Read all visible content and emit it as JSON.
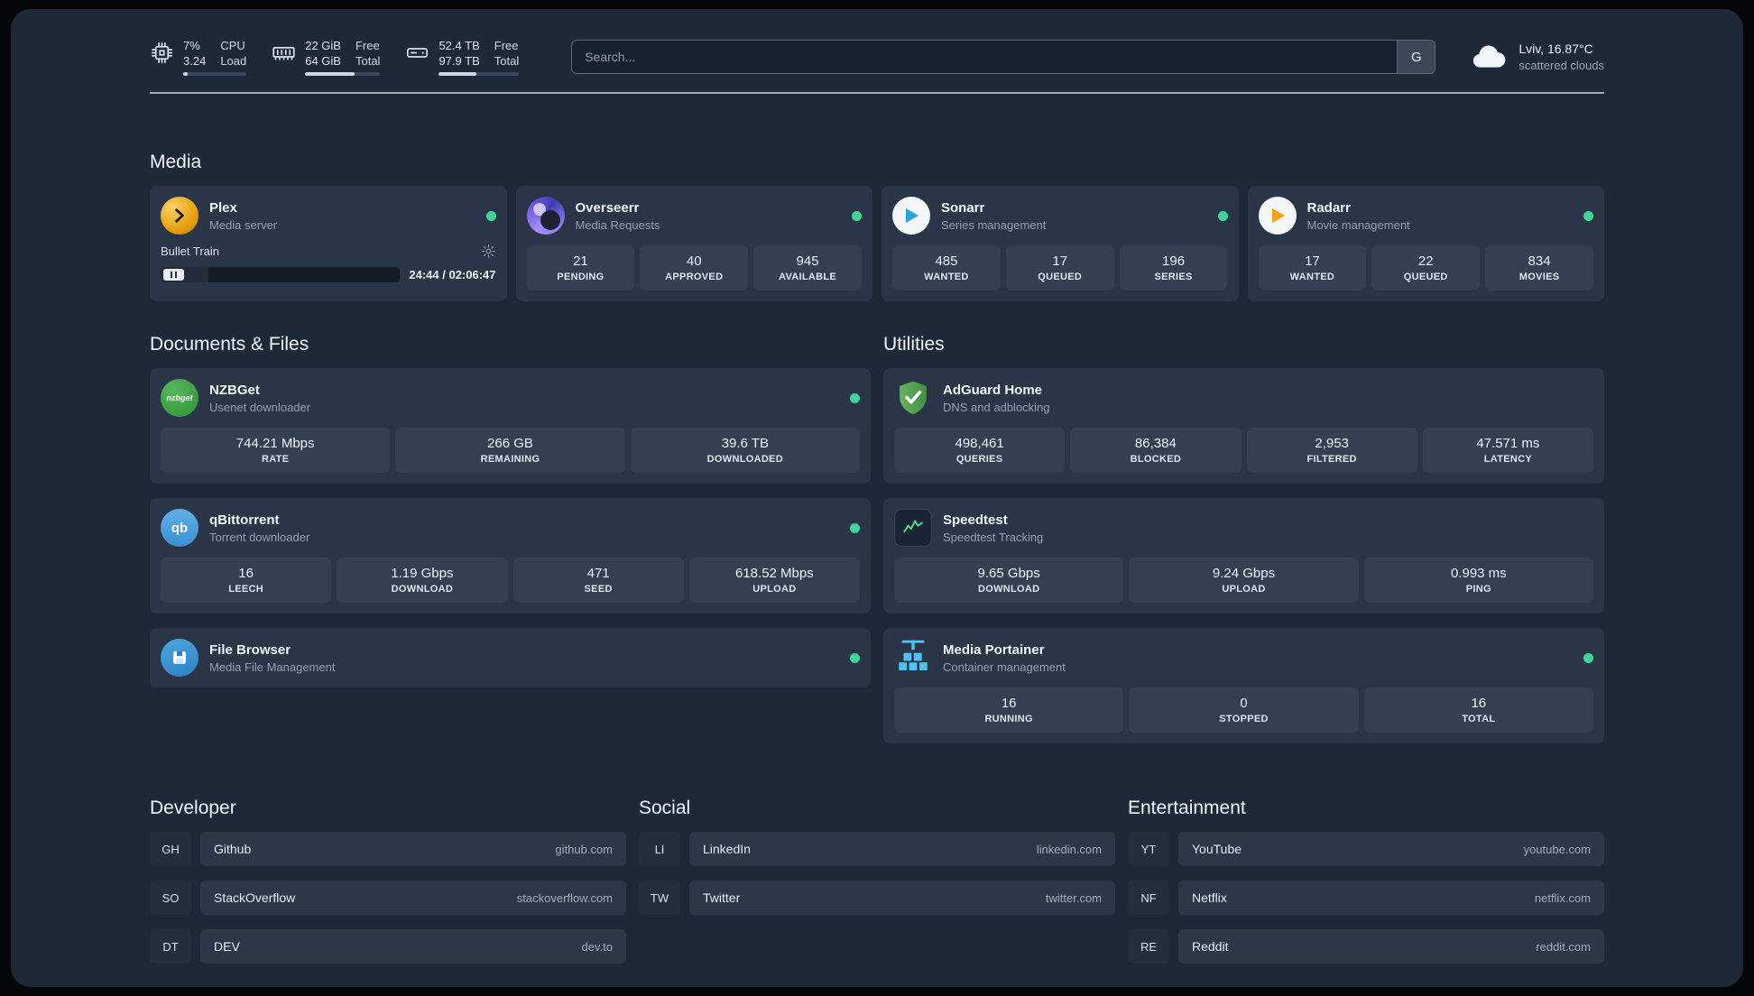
{
  "colors": {
    "status_online": "#3ed598",
    "plex_gold": "#e5a00d",
    "page_bg": "#1e2938",
    "card_bg": "#2a3547"
  },
  "topbar": {
    "resources": [
      {
        "icon": "cpu-icon",
        "values": [
          "7%",
          "3.24"
        ],
        "labels": [
          "CPU",
          "Load"
        ],
        "progress": 7
      },
      {
        "icon": "memory-icon",
        "values": [
          "22 GiB",
          "64 GiB"
        ],
        "labels": [
          "Free",
          "Total"
        ],
        "progress": 66
      },
      {
        "icon": "disk-icon",
        "values": [
          "52.4 TB",
          "97.9 TB"
        ],
        "labels": [
          "Free",
          "Total"
        ],
        "progress": 47
      }
    ],
    "search": {
      "placeholder": "Search...",
      "provider": "G"
    },
    "weather": {
      "icon": "cloud-icon",
      "location": "Lviv, 16.87°C",
      "condition": "scattered clouds"
    }
  },
  "sections": {
    "media": {
      "title": "Media",
      "services": [
        {
          "icon": "plex-icon",
          "name": "Plex",
          "desc": "Media server",
          "status": "online",
          "media": {
            "title": "Bullet Train",
            "time": "24:44 / 02:06:47",
            "progress_pct": 20,
            "state": "paused"
          }
        },
        {
          "icon": "overseerr-icon",
          "name": "Overseerr",
          "desc": "Media Requests",
          "status": "online",
          "stats": [
            {
              "value": "21",
              "label": "PENDING"
            },
            {
              "value": "40",
              "label": "APPROVED"
            },
            {
              "value": "945",
              "label": "AVAILABLE"
            }
          ]
        },
        {
          "icon": "sonarr-icon",
          "name": "Sonarr",
          "desc": "Series management",
          "status": "online",
          "stats": [
            {
              "value": "485",
              "label": "WANTED"
            },
            {
              "value": "17",
              "label": "QUEUED"
            },
            {
              "value": "196",
              "label": "SERIES"
            }
          ]
        },
        {
          "icon": "radarr-icon",
          "name": "Radarr",
          "desc": "Movie management",
          "status": "online",
          "stats": [
            {
              "value": "17",
              "label": "WANTED"
            },
            {
              "value": "22",
              "label": "QUEUED"
            },
            {
              "value": "834",
              "label": "MOVIES"
            }
          ]
        }
      ]
    },
    "documents": {
      "title": "Documents & Files",
      "services": [
        {
          "icon": "nzbget-icon",
          "name": "NZBGet",
          "desc": "Usenet downloader",
          "status": "online",
          "stats": [
            {
              "value": "744.21 Mbps",
              "label": "RATE"
            },
            {
              "value": "266 GB",
              "label": "REMAINING"
            },
            {
              "value": "39.6 TB",
              "label": "DOWNLOADED"
            }
          ]
        },
        {
          "icon": "qbittorrent-icon",
          "name": "qBittorrent",
          "desc": "Torrent downloader",
          "status": "online",
          "stats": [
            {
              "value": "16",
              "label": "LEECH"
            },
            {
              "value": "1.19 Gbps",
              "label": "DOWNLOAD"
            },
            {
              "value": "471",
              "label": "SEED"
            },
            {
              "value": "618.52 Mbps",
              "label": "UPLOAD"
            }
          ]
        },
        {
          "icon": "filebrowser-icon",
          "name": "File Browser",
          "desc": "Media File Management",
          "status": "online"
        }
      ]
    },
    "utilities": {
      "title": "Utilities",
      "services": [
        {
          "icon": "adguard-icon",
          "name": "AdGuard Home",
          "desc": "DNS and adblocking",
          "stats": [
            {
              "value": "498,461",
              "label": "QUERIES"
            },
            {
              "value": "86,384",
              "label": "BLOCKED"
            },
            {
              "value": "2,953",
              "label": "FILTERED"
            },
            {
              "value": "47.571 ms",
              "label": "LATENCY"
            }
          ]
        },
        {
          "icon": "speedtest-icon",
          "name": "Speedtest",
          "desc": "Speedtest Tracking",
          "stats": [
            {
              "value": "9.65 Gbps",
              "label": "DOWNLOAD"
            },
            {
              "value": "9.24 Gbps",
              "label": "UPLOAD"
            },
            {
              "value": "0.993 ms",
              "label": "PING"
            }
          ]
        },
        {
          "icon": "portainer-icon",
          "name": "Media Portainer",
          "desc": "Container management",
          "status": "online",
          "stats": [
            {
              "value": "16",
              "label": "RUNNING"
            },
            {
              "value": "0",
              "label": "STOPPED"
            },
            {
              "value": "16",
              "label": "TOTAL"
            }
          ]
        }
      ]
    }
  },
  "bookmarks": [
    {
      "title": "Developer",
      "items": [
        {
          "abbr": "GH",
          "name": "Github",
          "url": "github.com"
        },
        {
          "abbr": "SO",
          "name": "StackOverflow",
          "url": "stackoverflow.com"
        },
        {
          "abbr": "DT",
          "name": "DEV",
          "url": "dev.to"
        }
      ]
    },
    {
      "title": "Social",
      "items": [
        {
          "abbr": "LI",
          "name": "LinkedIn",
          "url": "linkedin.com"
        },
        {
          "abbr": "TW",
          "name": "Twitter",
          "url": "twitter.com"
        }
      ]
    },
    {
      "title": "Entertainment",
      "items": [
        {
          "abbr": "YT",
          "name": "YouTube",
          "url": "youtube.com"
        },
        {
          "abbr": "NF",
          "name": "Netflix",
          "url": "netflix.com"
        },
        {
          "abbr": "RE",
          "name": "Reddit",
          "url": "reddit.com"
        }
      ]
    }
  ]
}
